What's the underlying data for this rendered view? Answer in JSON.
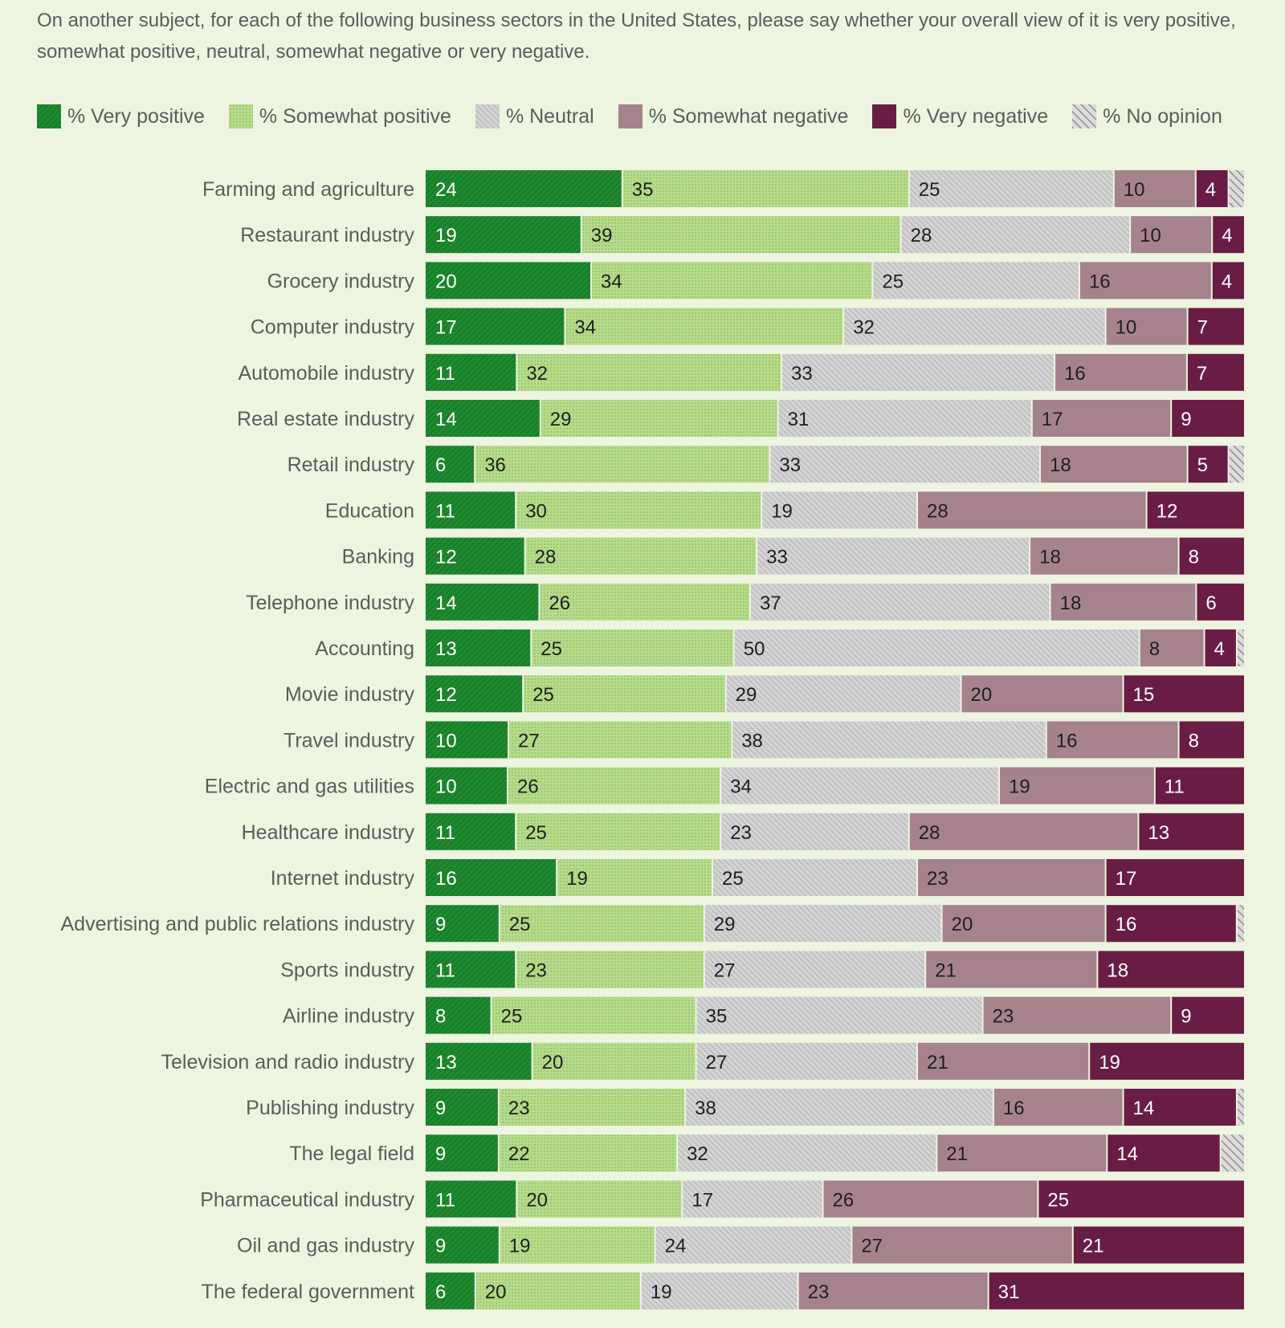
{
  "header": {
    "question": "On another subject, for each of the following business sectors in the United States, please say whether your overall view of it is very positive, somewhat positive, neutral, somewhat negative or very negative."
  },
  "legend": {
    "items": [
      {
        "label": "% Very positive",
        "color": "#1e8a2e"
      },
      {
        "label": "% Somewhat positive",
        "color": "#b6db8a"
      },
      {
        "label": "% Neutral",
        "color": "#c4c4c4"
      },
      {
        "label": "% Somewhat negative",
        "color": "#a6838c"
      },
      {
        "label": "% Very negative",
        "color": "#6a1d44"
      },
      {
        "label": "% No opinion",
        "color": "#bcbcbc"
      }
    ]
  },
  "chart_data": {
    "type": "bar",
    "orientation": "horizontal",
    "stacked": true,
    "xlim": [
      0,
      100
    ],
    "categories": [
      "Farming and agriculture",
      "Restaurant industry",
      "Grocery industry",
      "Computer industry",
      "Automobile industry",
      "Real estate industry",
      "Retail industry",
      "Education",
      "Banking",
      "Telephone industry",
      "Accounting",
      "Movie industry",
      "Travel industry",
      "Electric and gas utilities",
      "Healthcare industry",
      "Internet industry",
      "Advertising and public relations industry",
      "Sports industry",
      "Airline industry",
      "Television and radio industry",
      "Publishing industry",
      "The legal field",
      "Pharmaceutical industry",
      "Oil and gas industry",
      "The federal government"
    ],
    "series": [
      {
        "name": "% Very positive",
        "color": "#1e8a2e",
        "values": [
          24,
          19,
          20,
          17,
          11,
          14,
          6,
          11,
          12,
          14,
          13,
          12,
          10,
          10,
          11,
          16,
          9,
          11,
          8,
          13,
          9,
          9,
          11,
          9,
          6
        ]
      },
      {
        "name": "% Somewhat positive",
        "color": "#b6db8a",
        "values": [
          35,
          39,
          34,
          34,
          32,
          29,
          36,
          30,
          28,
          26,
          25,
          25,
          27,
          26,
          25,
          19,
          25,
          23,
          25,
          20,
          23,
          22,
          20,
          19,
          20
        ]
      },
      {
        "name": "% Neutral",
        "color": "#c4c4c4",
        "values": [
          25,
          28,
          25,
          32,
          33,
          31,
          33,
          19,
          33,
          37,
          50,
          29,
          38,
          34,
          23,
          25,
          29,
          27,
          35,
          27,
          38,
          32,
          17,
          24,
          19
        ]
      },
      {
        "name": "% Somewhat negative",
        "color": "#a6838c",
        "values": [
          10,
          10,
          16,
          10,
          16,
          17,
          18,
          28,
          18,
          18,
          8,
          20,
          16,
          19,
          28,
          23,
          20,
          21,
          23,
          21,
          16,
          21,
          26,
          27,
          23
        ]
      },
      {
        "name": "% Very negative",
        "color": "#6a1d44",
        "values": [
          4,
          4,
          4,
          7,
          7,
          9,
          5,
          12,
          8,
          6,
          4,
          15,
          8,
          11,
          13,
          17,
          16,
          18,
          9,
          19,
          14,
          14,
          25,
          21,
          31
        ]
      },
      {
        "name": "% No opinion",
        "color": "#bcbcbc",
        "values": [
          2,
          0,
          0,
          0,
          0,
          0,
          2,
          0,
          0,
          0,
          1,
          0,
          0,
          0,
          0,
          0,
          1,
          0,
          0,
          0,
          1,
          3,
          0,
          0,
          0
        ]
      }
    ]
  }
}
